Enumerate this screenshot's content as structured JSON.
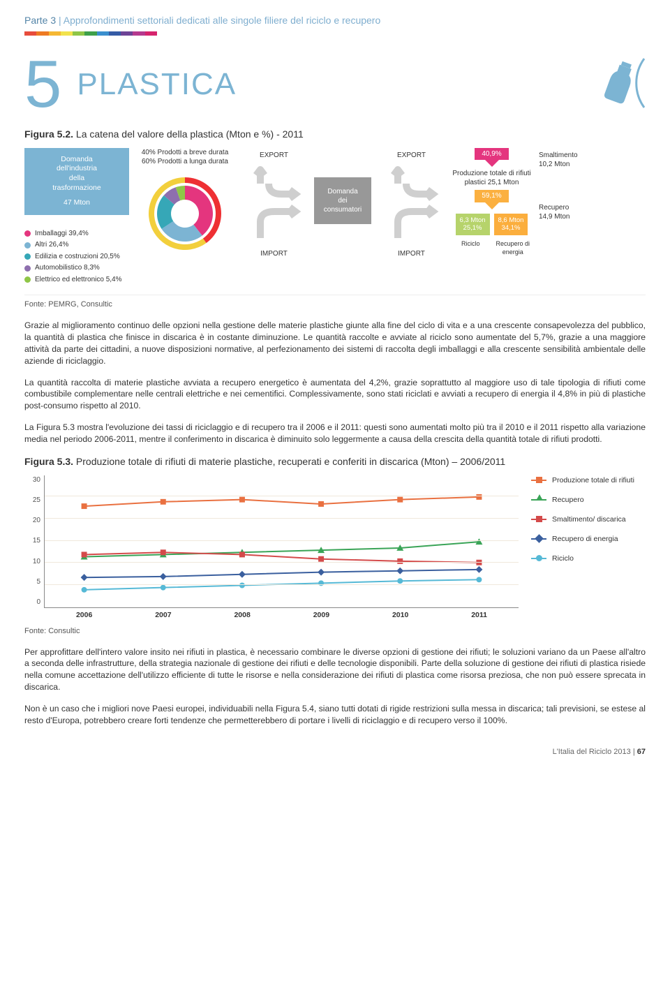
{
  "header": {
    "part_label": "Parte 3",
    "part_desc": "Approfondimenti settoriali dedicati alle singole filiere del riciclo e recupero",
    "rainbow_colors": [
      "#e74c3c",
      "#ee7a22",
      "#f5b733",
      "#f2e24c",
      "#8fc647",
      "#3ea04a",
      "#3a8fce",
      "#355ba5",
      "#6d4396",
      "#b53a8e",
      "#d6246d"
    ]
  },
  "chapter": {
    "number": "5",
    "title": "PLASTICA"
  },
  "accent_color": "#7cb4d3",
  "fig52": {
    "title_a": "Figura 5.2.",
    "title_b": " La catena del valore della plastica (Mton e %) - 2011",
    "industry_box": {
      "line1": "Domanda",
      "line2": "dell'industria",
      "line3": "della",
      "line4": "trasformazione",
      "value": "47 Mton"
    },
    "legend": [
      {
        "color": "#e4357e",
        "label": "Imballaggi 39,4%"
      },
      {
        "color": "#7cb4d3",
        "label": "Altri 26,4%"
      },
      {
        "color": "#36a7b7",
        "label": "Edilizia e costruzioni 20,5%"
      },
      {
        "color": "#8e6fae",
        "label": "Automobilistico 8,3%"
      },
      {
        "color": "#8fc647",
        "label": "Elettrico ed elettronico 5,4%"
      }
    ],
    "donut": {
      "caption1": "40% Prodotti a breve durata",
      "caption2": "60% Prodotti a lunga durata",
      "slices": [
        {
          "color": "#e4357e",
          "pct": 39.4
        },
        {
          "color": "#7cb4d3",
          "pct": 26.4
        },
        {
          "color": "#36a7b7",
          "pct": 20.5
        },
        {
          "color": "#8e6fae",
          "pct": 8.3
        },
        {
          "color": "#8fc647",
          "pct": 5.4
        }
      ],
      "ring_outer_color": "#ee3033",
      "ring_inner_color": "#f2cf3c"
    },
    "flow": {
      "export": "EXPORT",
      "import": "IMPORT",
      "arrow_color": "#cfcfcf"
    },
    "demand_box": {
      "l1": "Domanda",
      "l2": "dei",
      "l3": "consumatori"
    },
    "production": {
      "pct_top": "40,9%",
      "text": "Produzione totale di rifiuti plastici 25,1 Mton",
      "pct_mid": "59,1%",
      "box_left": {
        "l1": "6,3 Mton",
        "l2": "25,1%",
        "color": "#b6d36b"
      },
      "box_right": {
        "l1": "8,6 Mton",
        "l2": "34,1%",
        "color": "#fbae3d"
      },
      "label_left": "Riciclo",
      "label_right": "Recupero di energia"
    },
    "smaltimento": {
      "l1": "Smaltimento",
      "l2": "10,2 Mton",
      "rec1": "Recupero",
      "rec2": "14,9 Mton"
    },
    "fonte": "Fonte: PEMRG, Consultic"
  },
  "paragraphs": {
    "p1": "Grazie al miglioramento continuo delle opzioni nella gestione delle materie plastiche giunte alla fine del ciclo di vita e a una crescente consapevolezza del pubblico, la quantità di plastica che finisce in discarica è in costante diminuzione. Le quantità raccolte e avviate al riciclo sono aumentate del 5,7%, grazie a una maggiore attività da parte dei cittadini, a nuove disposizioni normative, al perfezionamento dei sistemi di raccolta degli imballaggi e alla crescente sensibilità ambientale delle aziende di riciclaggio.",
    "p2": "La quantità raccolta di materie plastiche avviata a recupero energetico è aumentata del 4,2%, grazie soprattutto al maggiore uso di tale tipologia di rifiuti come combustibile complementare nelle centrali elettriche e nei cementifici. Complessivamente, sono stati riciclati e avviati a recupero di energia il 4,8% in più di plastiche post-consumo rispetto al 2010.",
    "p3": "La Figura 5.3 mostra l'evoluzione dei tassi di riciclaggio e di recupero tra il 2006 e il 2011: questi sono aumentati molto più tra il 2010 e il 2011 rispetto alla variazione media nel periodo 2006-2011, mentre il conferimento in discarica è diminuito solo leggermente a causa della crescita della quantità totale di rifiuti prodotti."
  },
  "fig53": {
    "title_a": "Figura 5.3.",
    "title_b": " Produzione totale di rifiuti di materie plastiche, recuperati e conferiti in discarica (Mton) – 2006/2011",
    "ylim": [
      0,
      30
    ],
    "ytick_step": 5,
    "years": [
      "2006",
      "2007",
      "2008",
      "2009",
      "2010",
      "2011"
    ],
    "series": [
      {
        "name": "Produzione totale di rifiuti",
        "color": "#e97040",
        "marker": "square",
        "values": [
          23.0,
          24.0,
          24.5,
          23.5,
          24.5,
          25.1
        ]
      },
      {
        "name": "Recupero",
        "color": "#3aa457",
        "marker": "triangle",
        "values": [
          11.5,
          12.0,
          12.5,
          13.0,
          13.5,
          14.9
        ]
      },
      {
        "name": "Smaltimento/ discarica",
        "color": "#d44a4a",
        "marker": "square",
        "values": [
          12.0,
          12.5,
          12.0,
          11.0,
          10.5,
          10.2
        ]
      },
      {
        "name": "Recupero di energia",
        "color": "#3a5f9e",
        "marker": "diamond",
        "values": [
          6.8,
          7.0,
          7.5,
          8.0,
          8.3,
          8.6
        ]
      },
      {
        "name": "Riciclo",
        "color": "#56b9d6",
        "marker": "circle",
        "values": [
          4.0,
          4.5,
          5.0,
          5.5,
          6.0,
          6.3
        ]
      }
    ],
    "fonte": "Fonte: Consultic",
    "grid_color": "#f0e8dc"
  },
  "paragraphs2": {
    "p4": "Per approfittare dell'intero valore insito nei rifiuti in plastica, è necessario combinare le diverse opzioni di gestione dei rifiuti; le soluzioni variano da un Paese all'altro a seconda delle infrastrutture, della strategia nazionale di gestione dei rifiuti e delle tecnologie disponibili. Parte della soluzione di gestione dei rifiuti di plastica risiede nella comune accettazione dell'utilizzo efficiente di tutte le risorse e nella considerazione dei rifiuti di plastica come risorsa preziosa, che non può essere sprecata in discarica.",
    "p5": "Non è un caso che i migliori nove Paesi europei, individuabili nella Figura 5.4, siano tutti dotati di rigide restrizioni sulla messa in discarica; tali previsioni, se estese al resto d'Europa, potrebbero creare forti tendenze che permetterebbero di portare i livelli di riciclaggio e di recupero verso il 100%."
  },
  "footer": {
    "text": "L'Italia del Riciclo 2013",
    "page": "67"
  }
}
